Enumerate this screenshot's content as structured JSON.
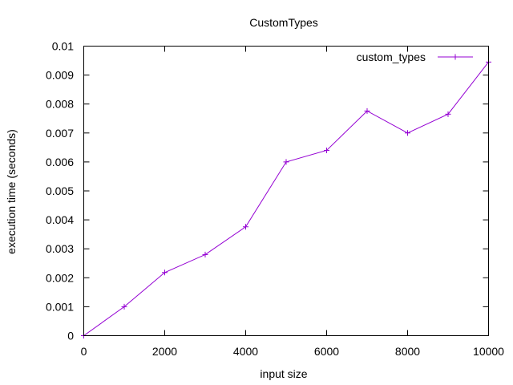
{
  "chart_data": {
    "type": "line",
    "title": "CustomTypes",
    "xlabel": "input size",
    "ylabel": "execution time (seconds)",
    "xlim": [
      0,
      10000
    ],
    "ylim": [
      0,
      0.01
    ],
    "x_ticks": [
      "0",
      "2000",
      "4000",
      "6000",
      "8000",
      "10000"
    ],
    "y_ticks": [
      "0",
      "0.001",
      "0.002",
      "0.003",
      "0.004",
      "0.005",
      "0.006",
      "0.007",
      "0.008",
      "0.009",
      "0.01"
    ],
    "grid": false,
    "legend_position": "top-right",
    "series": [
      {
        "name": "custom_types",
        "color": "#9400d3",
        "marker": "plus",
        "x": [
          0,
          1000,
          2000,
          3000,
          4000,
          5000,
          6000,
          7000,
          8000,
          9000,
          10000
        ],
        "y": [
          0.0,
          0.001,
          0.00218,
          0.0028,
          0.00376,
          0.006,
          0.0064,
          0.00776,
          0.007,
          0.00765,
          0.00945
        ]
      }
    ]
  }
}
